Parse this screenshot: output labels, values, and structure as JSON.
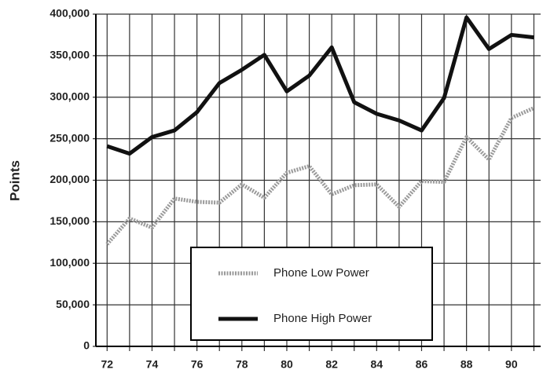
{
  "chart_data": {
    "type": "line",
    "y_label": "Points",
    "x": [
      72,
      73,
      74,
      75,
      76,
      77,
      78,
      79,
      80,
      81,
      82,
      83,
      84,
      85,
      86,
      87,
      88,
      89,
      90,
      91
    ],
    "series": [
      {
        "name": "Phone Low Power",
        "color": "#9a9a9a",
        "values": [
          123000,
          154000,
          143000,
          178000,
          174000,
          173000,
          195000,
          179000,
          209000,
          217000,
          183000,
          194000,
          195000,
          168000,
          199000,
          198000,
          252000,
          225000,
          275000,
          287000
        ]
      },
      {
        "name": "Phone High Power",
        "color": "#111111",
        "values": [
          241000,
          232000,
          252000,
          260000,
          282000,
          317000,
          333000,
          351000,
          307000,
          326000,
          360000,
          294000,
          280000,
          272000,
          260000,
          299000,
          396000,
          358000,
          375000,
          372000
        ]
      }
    ],
    "xlim": [
      71.5,
      91.3
    ],
    "xticks": [
      72,
      74,
      76,
      78,
      80,
      82,
      84,
      86,
      88,
      90
    ],
    "ylim": [
      0,
      400000
    ],
    "yticks": [
      0,
      {
        "value": 50000,
        "label": "50,000"
      },
      {
        "value": 100000,
        "label": "100,000"
      },
      {
        "value": 150000,
        "label": "150,000"
      },
      {
        "value": 200000,
        "label": "200,000"
      },
      {
        "value": 250000,
        "label": "250,000"
      },
      {
        "value": 300000,
        "label": "300,000"
      },
      {
        "value": 350000,
        "label": "350,000"
      },
      {
        "value": 400000,
        "label": "400,000"
      }
    ],
    "grid": true
  }
}
